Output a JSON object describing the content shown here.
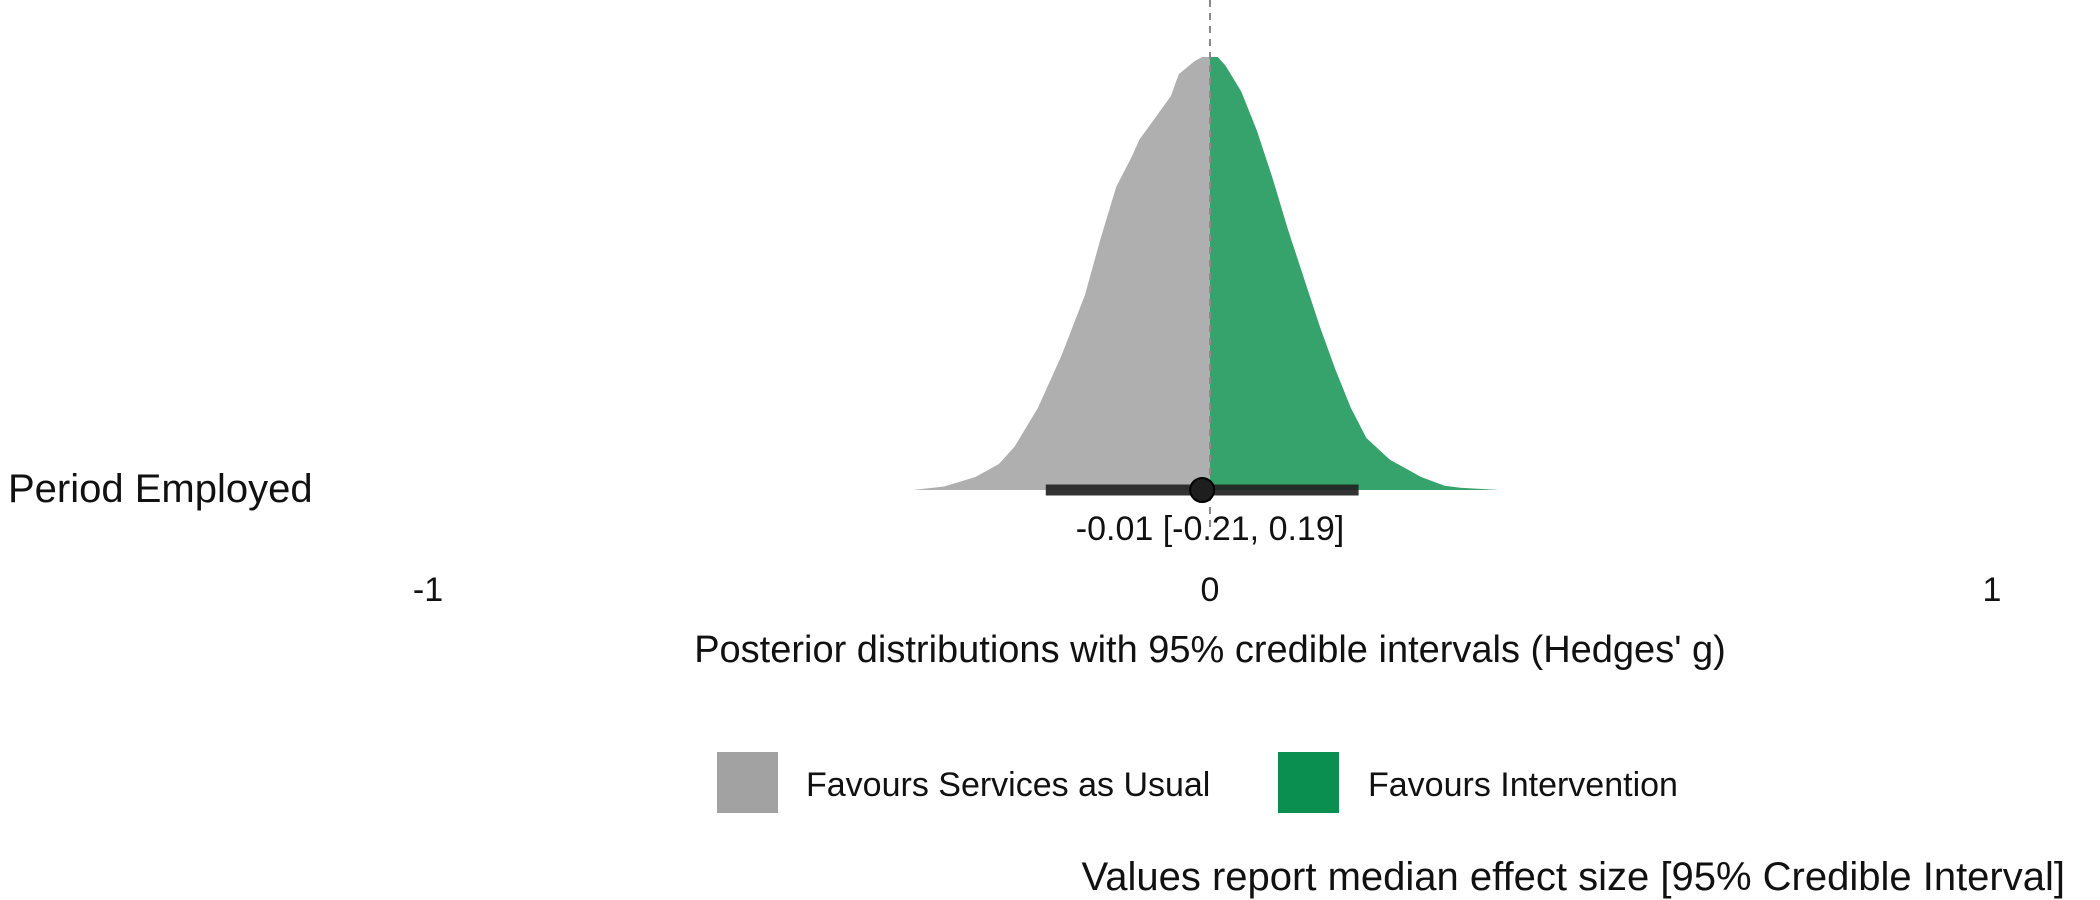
{
  "chart_data": {
    "type": "area",
    "title": "",
    "xlabel": "Posterior distributions with 95% credible intervals (Hedges' g)",
    "ylabel": "",
    "xlim": [
      -1,
      1
    ],
    "x_ticks": [
      {
        "value": -1,
        "label": "-1"
      },
      {
        "value": 0,
        "label": "0"
      },
      {
        "value": 1,
        "label": "1"
      }
    ],
    "reference_line": 0,
    "grid": false,
    "rows": [
      {
        "label": "Period Employed",
        "median": -0.01,
        "ci": [
          -0.21,
          0.19
        ],
        "interval_label": "-0.01 [-0.21, 0.19]",
        "density": {
          "x": [
            -0.38,
            -0.34,
            -0.3,
            -0.27,
            -0.25,
            -0.22,
            -0.19,
            -0.16,
            -0.14,
            -0.12,
            -0.1,
            -0.09,
            -0.07,
            -0.05,
            -0.04,
            -0.02,
            -0.01,
            0,
            0.01,
            0.02,
            0.04,
            0.06,
            0.08,
            0.1,
            0.12,
            0.14,
            0.16,
            0.18,
            0.2,
            0.23,
            0.27,
            0.3,
            0.32,
            0.37
          ],
          "y": [
            0,
            0.008,
            0.03,
            0.06,
            0.1,
            0.19,
            0.31,
            0.45,
            0.58,
            0.7,
            0.77,
            0.81,
            0.86,
            0.91,
            0.96,
            0.99,
            1.0,
            1.0,
            1.0,
            0.98,
            0.92,
            0.83,
            0.72,
            0.6,
            0.49,
            0.38,
            0.28,
            0.19,
            0.12,
            0.07,
            0.03,
            0.01,
            0.005,
            0
          ]
        }
      }
    ],
    "legend": {
      "position": "bottom",
      "items": [
        {
          "label": "Favours Services as Usual",
          "color": "#a3a2a3"
        },
        {
          "label": "Favours Intervention",
          "color": "#0a8f51"
        }
      ]
    },
    "fill_colors": {
      "negative": "#b0afb0",
      "positive": "#36a36c"
    },
    "caption": "Values report median effect size [95% Credible Interval]"
  }
}
